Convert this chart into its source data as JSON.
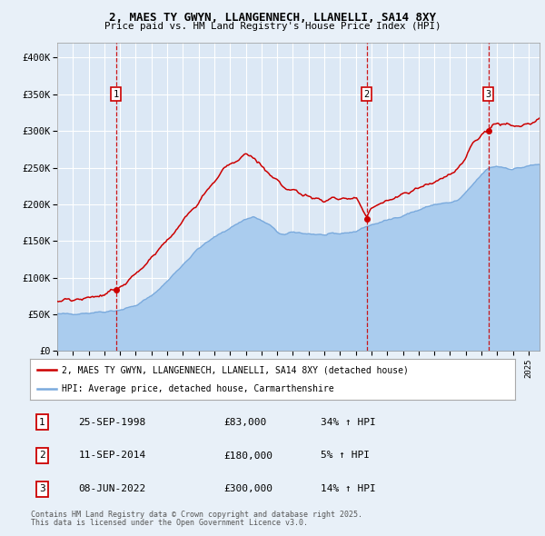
{
  "title_line1": "2, MAES TY GWYN, LLANGENNECH, LLANELLI, SA14 8XY",
  "title_line2": "Price paid vs. HM Land Registry's House Price Index (HPI)",
  "red_label": "2, MAES TY GWYN, LLANGENNECH, LLANELLI, SA14 8XY (detached house)",
  "blue_label": "HPI: Average price, detached house, Carmarthenshire",
  "sale_points": [
    {
      "num": 1,
      "date_val": 1998.73,
      "price": 83000,
      "label": "25-SEP-1998",
      "pct": "34%",
      "dir": "↑"
    },
    {
      "num": 2,
      "date_val": 2014.7,
      "price": 180000,
      "label": "11-SEP-2014",
      "pct": "5%",
      "dir": "↑"
    },
    {
      "num": 3,
      "date_val": 2022.44,
      "price": 300000,
      "label": "08-JUN-2022",
      "pct": "14%",
      "dir": "↑"
    }
  ],
  "footnote1": "Contains HM Land Registry data © Crown copyright and database right 2025.",
  "footnote2": "This data is licensed under the Open Government Licence v3.0.",
  "bg_color": "#e8f0f8",
  "plot_bg_color": "#dce8f5",
  "red_color": "#cc0000",
  "blue_color": "#7aaadd",
  "blue_fill_color": "#aaccee",
  "grid_color": "#ffffff",
  "vline_color": "#cc0000",
  "ylim_max": 420000,
  "xlim_start": 1995.0,
  "xlim_end": 2025.7,
  "hpi_anchors_x": [
    1995.0,
    1997.0,
    1998.0,
    1999.0,
    2000.0,
    2001.0,
    2002.0,
    2003.0,
    2004.0,
    2005.0,
    2006.0,
    2007.0,
    2007.5,
    2008.5,
    2009.0,
    2009.5,
    2010.0,
    2011.0,
    2012.0,
    2013.0,
    2014.0,
    2014.7,
    2015.0,
    2016.0,
    2017.0,
    2018.0,
    2019.0,
    2020.0,
    2020.5,
    2021.0,
    2021.5,
    2022.0,
    2022.5,
    2023.0,
    2024.0,
    2025.0,
    2025.7
  ],
  "hpi_anchors_y": [
    50000,
    52000,
    54000,
    56000,
    62000,
    75000,
    95000,
    118000,
    140000,
    155000,
    168000,
    180000,
    183000,
    172000,
    162000,
    158000,
    162000,
    160000,
    158000,
    160000,
    163000,
    170000,
    172000,
    178000,
    185000,
    192000,
    200000,
    202000,
    205000,
    215000,
    228000,
    240000,
    250000,
    252000,
    248000,
    252000,
    255000
  ],
  "red_anchors_x": [
    1995.0,
    1997.0,
    1998.0,
    1998.73,
    2000.0,
    2002.0,
    2004.0,
    2005.5,
    2006.0,
    2007.0,
    2007.8,
    2008.5,
    2009.5,
    2010.0,
    2011.0,
    2012.0,
    2013.0,
    2014.0,
    2014.7,
    2015.0,
    2015.5,
    2016.0,
    2017.0,
    2018.0,
    2019.0,
    2020.0,
    2020.5,
    2021.0,
    2021.5,
    2022.0,
    2022.44,
    2022.8,
    2023.0,
    2024.0,
    2025.0,
    2025.7
  ],
  "red_anchors_y": [
    68000,
    72000,
    76000,
    83000,
    105000,
    150000,
    205000,
    245000,
    255000,
    268000,
    258000,
    240000,
    220000,
    220000,
    210000,
    205000,
    208000,
    210000,
    180000,
    195000,
    200000,
    205000,
    215000,
    222000,
    232000,
    240000,
    248000,
    265000,
    285000,
    295000,
    300000,
    308000,
    312000,
    305000,
    310000,
    315000
  ]
}
